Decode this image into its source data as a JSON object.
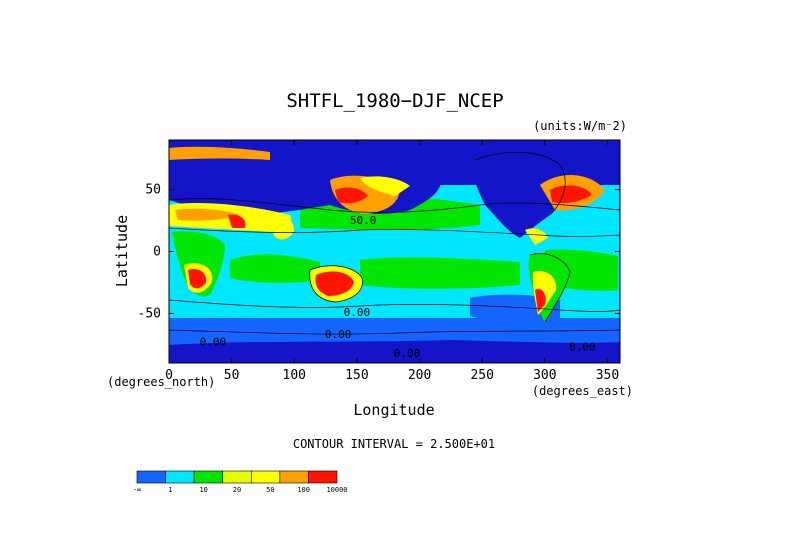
{
  "chart_data": {
    "type": "heatmap",
    "title": "SHTFL_1980−DJF_NCEP",
    "units_note": "(units:W/m⁻2)",
    "xlabel": "Longitude",
    "ylabel": "Latitude",
    "x_unit_note": "(degrees_east)",
    "y_unit_note": "(degrees_north)",
    "xlim": [
      0,
      360
    ],
    "ylim": [
      -90,
      90
    ],
    "x_ticks": [
      0,
      50,
      100,
      150,
      200,
      250,
      300,
      350
    ],
    "y_ticks": [
      50,
      0,
      -50
    ],
    "contour_interval_text": "CONTOUR INTERVAL = 2.500E+01",
    "contour_labels": [
      {
        "text": "50.0",
        "lon": 155,
        "lat": 22
      },
      {
        "text": "0.00",
        "lon": 150,
        "lat": -52
      },
      {
        "text": "0.00",
        "lon": 135,
        "lat": -70
      },
      {
        "text": "0.00",
        "lon": 35,
        "lat": -76
      },
      {
        "text": "0.00",
        "lon": 190,
        "lat": -85
      },
      {
        "text": "0.00",
        "lon": 330,
        "lat": -80
      }
    ],
    "colorbar": {
      "labels": [
        "-∞",
        "1",
        "10",
        "20",
        "50",
        "100",
        "10000"
      ],
      "colors": [
        "#1464ff",
        "#00e6ff",
        "#00e600",
        "#e6ff00",
        "#ffff00",
        "#ffa000",
        "#ff1400"
      ]
    },
    "field_colors": {
      "deep": "#1414c8",
      "low": "#1464ff",
      "ocean": "#00e6ff",
      "mid": "#00e600",
      "warm": "#ffff00",
      "hot": "#ffa000",
      "veryhot": "#ff1400"
    }
  }
}
